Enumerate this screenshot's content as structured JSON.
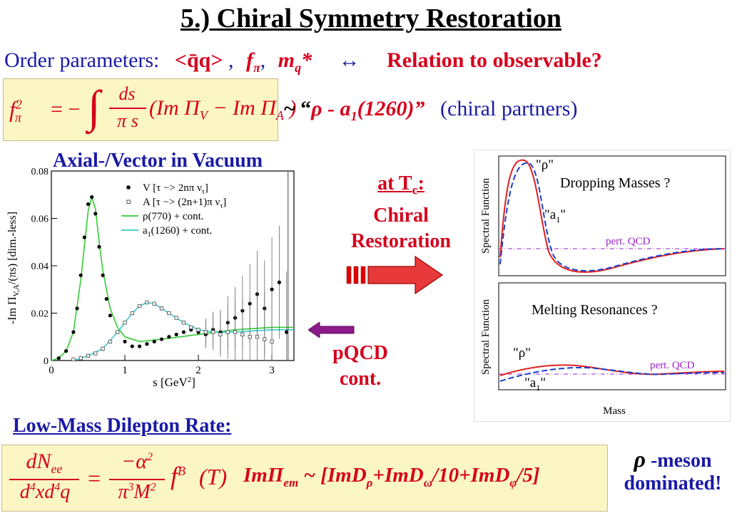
{
  "slide": {
    "title": "5.) Chiral Symmetry Restoration",
    "order_params": {
      "label": "Order parameters:",
      "qq": "<q̄q>",
      "sep1": ",",
      "fpi": "f",
      "fpi_sub": "π",
      "sep2": ",",
      "mq": "m",
      "mq_sub": "q",
      "mq_star": "*",
      "arrow": "↔",
      "relation": "Relation to observable?"
    },
    "sum_rule": {
      "lhs": "f",
      "lhs_sub": "π",
      "lhs_sup": "2",
      "eq": "= −",
      "integral": "∫",
      "ds": "ds",
      "pis": "π s",
      "rhs_a": "(Im Π",
      "rhs_a_sub": "V",
      "rhs_b": " − Im Π",
      "rhs_b_sub": "A",
      "rhs_end": " )"
    },
    "partners": {
      "tilde": "~ “",
      "rho": "ρ - a",
      "a_sub": "1",
      "a_end": "(1260)”",
      "note": "(chiral partners)"
    },
    "vacuum_title": "Axial-/Vector in Vacuum",
    "tc_arrow": {
      "line1": "at T",
      "line1_sub": "c",
      "line1_end": ":",
      "line2": "Chiral",
      "line3": "Restoration"
    },
    "pqcd_label": {
      "line1": "pQCD",
      "line2": "cont."
    },
    "dilepton_title": "Low-Mass Dilepton Rate:",
    "dilepton_eq": {
      "dN": "dN",
      "dN_sub": "ee",
      "den": "d",
      "den_sup1": "4",
      "den_mid": "xd",
      "den_sup2": "4",
      "den_end": "q",
      "eq": "=",
      "num2": "−α",
      "num2_sup": "2",
      "den2": "π",
      "den2_sup": "3",
      "den2_mid": "M",
      "den2_sup2": "2",
      "fB": "f",
      "fB_sup": "B",
      "T": "(T)",
      "im": "ImΠ",
      "im_sub": "em",
      "rest_a": " ~ [ImD",
      "rest_a_sub": "ρ",
      "rest_b": "+ImD",
      "rest_b_sub": "ω",
      "rest_c": "/10+ImD",
      "rest_c_sub": "φ",
      "rest_d": "/5]"
    },
    "rho_meson": {
      "rho": "ρ",
      "line1": " -meson",
      "line2": "dominated!"
    }
  },
  "vacuum_plot": {
    "y_axis_label": "-Im Π",
    "y_axis_sub": "V,A",
    "y_axis_rest": "/(πs) [dim.-less]",
    "x_axis_label": "s [GeV",
    "x_axis_sup": "2",
    "x_axis_end": "]",
    "legend": [
      {
        "text": "V [τ −> 2nπ ν",
        "sub": "τ",
        "end": "]"
      },
      {
        "text": "A [τ −> (2n+1)π ν",
        "sub": "τ",
        "end": "]"
      },
      {
        "text": "ρ(770)   + cont.",
        "sub": "",
        "end": ""
      },
      {
        "text": "a",
        "sub": "1",
        "end": "(1260) + cont."
      }
    ],
    "x_ticks": [
      "0",
      "1",
      "2",
      "3"
    ],
    "y_ticks": [
      "0",
      "0.02",
      "0.04",
      "0.06",
      "0.08"
    ]
  },
  "chart_data": [
    {
      "type": "scatter",
      "xlabel": "s [GeV²]",
      "ylabel": "-Im Π_V,A/(πs) [dim.-less]",
      "xlim": [
        0,
        3.3
      ],
      "ylim": [
        0,
        0.08
      ],
      "series": [
        {
          "name": "V [τ −> 2nπ ν_τ]",
          "kind": "points",
          "color": "#000000",
          "x": [
            0.1,
            0.2,
            0.3,
            0.35,
            0.4,
            0.45,
            0.5,
            0.55,
            0.6,
            0.65,
            0.7,
            0.75,
            0.8,
            0.9,
            1.0,
            1.1,
            1.2,
            1.3,
            1.4,
            1.5,
            1.6,
            1.7,
            1.8,
            1.9,
            2.0,
            2.1,
            2.2,
            2.3,
            2.4,
            2.5,
            2.6,
            2.7,
            2.8,
            2.9,
            3.0,
            3.1,
            3.2
          ],
          "y": [
            0.001,
            0.004,
            0.012,
            0.022,
            0.036,
            0.052,
            0.066,
            0.069,
            0.062,
            0.048,
            0.036,
            0.026,
            0.019,
            0.012,
            0.008,
            0.006,
            0.006,
            0.007,
            0.008,
            0.009,
            0.01,
            0.011,
            0.012,
            0.013,
            0.012,
            0.011,
            0.013,
            0.012,
            0.016,
            0.018,
            0.021,
            0.024,
            0.028,
            0.022,
            0.03,
            0.033,
            0.012
          ]
        },
        {
          "name": "A [τ −> (2n+1)π ν_τ]",
          "kind": "points",
          "color": "#555555",
          "x": [
            0.3,
            0.4,
            0.5,
            0.6,
            0.7,
            0.8,
            0.9,
            1.0,
            1.1,
            1.2,
            1.3,
            1.4,
            1.5,
            1.6,
            1.7,
            1.8,
            1.9,
            2.0,
            2.1,
            2.2,
            2.3,
            2.4,
            2.5,
            2.6,
            2.7,
            2.8,
            2.9,
            3.0
          ],
          "y": [
            0.0005,
            0.001,
            0.002,
            0.003,
            0.005,
            0.008,
            0.012,
            0.016,
            0.02,
            0.023,
            0.0245,
            0.024,
            0.022,
            0.02,
            0.018,
            0.016,
            0.014,
            0.013,
            0.012,
            0.012,
            0.011,
            0.012,
            0.012,
            0.011,
            0.01,
            0.01,
            0.009,
            0.008
          ]
        },
        {
          "name": "ρ(770)   + cont.",
          "kind": "line",
          "color": "#33cc33",
          "x": [
            0,
            0.1,
            0.2,
            0.3,
            0.4,
            0.5,
            0.55,
            0.6,
            0.65,
            0.7,
            0.8,
            0.9,
            1.0,
            1.2,
            1.5,
            2.0,
            2.5,
            3.0,
            3.3
          ],
          "y": [
            0,
            0.001,
            0.004,
            0.012,
            0.034,
            0.063,
            0.069,
            0.064,
            0.05,
            0.038,
            0.022,
            0.014,
            0.01,
            0.008,
            0.009,
            0.011,
            0.013,
            0.014,
            0.014
          ]
        },
        {
          "name": "a1(1260) + cont.",
          "kind": "line",
          "color": "#33cccc",
          "x": [
            0.3,
            0.5,
            0.7,
            0.9,
            1.0,
            1.1,
            1.2,
            1.3,
            1.4,
            1.5,
            1.6,
            1.8,
            2.0,
            2.2,
            2.5,
            3.0,
            3.3
          ],
          "y": [
            0,
            0.002,
            0.005,
            0.012,
            0.016,
            0.02,
            0.023,
            0.0245,
            0.024,
            0.022,
            0.02,
            0.016,
            0.013,
            0.012,
            0.012,
            0.013,
            0.013
          ]
        }
      ]
    }
  ],
  "dropping_plot": {
    "title": "Dropping Masses ?",
    "ylabel": "Spectral Function",
    "rho_label": "\"ρ\"",
    "a1_label": "\"a",
    "a1_sub": "1",
    "a1_end": "\"",
    "pqcd": "pert. QCD"
  },
  "melting_plot": {
    "title": "Melting Resonances ?",
    "ylabel": "Spectral Function",
    "rho_label": "\"ρ\"",
    "a1_label": "\"a",
    "a1_sub": "1",
    "a1_end": "\"",
    "pqcd": "pert. QCD",
    "xlabel": "Mass"
  }
}
